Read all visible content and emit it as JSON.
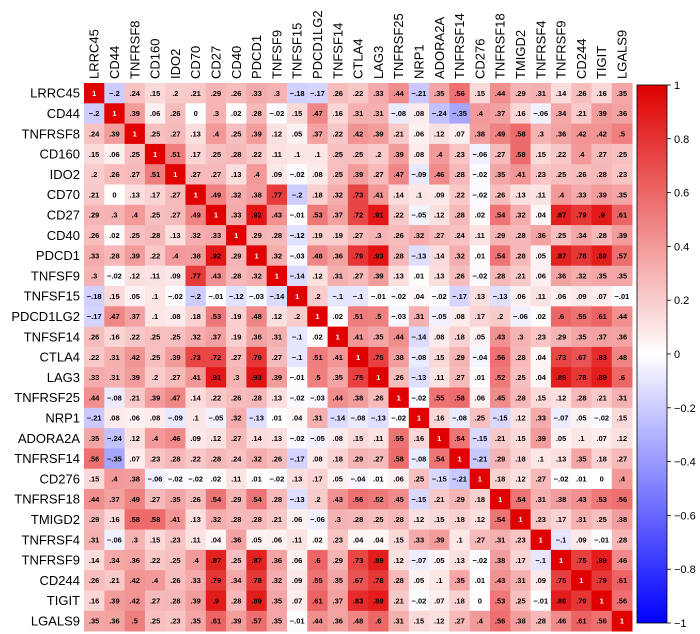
{
  "chart_data": {
    "type": "heatmap",
    "labels": [
      "LRRC45",
      "CD44",
      "TNFRSF8",
      "CD160",
      "IDO2",
      "CD70",
      "CD27",
      "CD40",
      "PDCD1",
      "TNFSF9",
      "TNFSF15",
      "PDCD1LG2",
      "TNFSF14",
      "CTLA4",
      "LAG3",
      "TNFRSF25",
      "NRP1",
      "ADORA2A",
      "TNFRSF14",
      "CD276",
      "TNFRSF18",
      "TMIGD2",
      "TNFRSF4",
      "TNFRSF9",
      "CD244",
      "TIGIT",
      "LGALS9"
    ],
    "matrix": [
      [
        1,
        -0.2,
        0.24,
        0.15,
        0.2,
        0.21,
        0.29,
        0.26,
        0.33,
        0.3,
        -0.18,
        -0.17,
        0.26,
        0.22,
        0.33,
        0.44,
        -0.21,
        0.35,
        0.56,
        0.15,
        0.44,
        0.29,
        0.31,
        0.14,
        0.26,
        0.16,
        0.35
      ],
      [
        -0.2,
        1,
        0.39,
        0.06,
        0.26,
        0,
        0.3,
        0.02,
        0.28,
        -0.02,
        0.15,
        0.47,
        0.16,
        0.31,
        0.31,
        -0.08,
        0.08,
        -0.24,
        -0.35,
        0.4,
        0.37,
        0.16,
        -0.06,
        0.34,
        0.21,
        0.39,
        0.36
      ],
      [
        0.24,
        0.39,
        1,
        0.25,
        0.27,
        0.13,
        0.4,
        0.25,
        0.39,
        0.12,
        0.05,
        0.37,
        0.22,
        0.42,
        0.39,
        0.21,
        0.06,
        0.12,
        0.07,
        0.38,
        0.49,
        0.58,
        0.3,
        0.36,
        0.42,
        0.42,
        0.5
      ],
      [
        0.15,
        0.06,
        0.25,
        1,
        0.51,
        0.17,
        0.25,
        0.28,
        0.22,
        0.11,
        0.1,
        0.1,
        0.25,
        0.25,
        0.2,
        0.39,
        0.08,
        0.4,
        0.23,
        -0.06,
        0.27,
        0.58,
        0.15,
        0.22,
        0.4,
        0.27,
        0.25
      ],
      [
        0.2,
        0.26,
        0.27,
        0.51,
        1,
        0.27,
        0.27,
        0.13,
        0.4,
        0.09,
        -0.02,
        0.08,
        0.25,
        0.39,
        0.27,
        0.47,
        -0.09,
        0.46,
        0.28,
        -0.02,
        0.35,
        0.41,
        0.23,
        0.25,
        0.26,
        0.28,
        0.23
      ],
      [
        0.21,
        0,
        0.13,
        0.17,
        0.27,
        1,
        0.49,
        0.32,
        0.38,
        0.77,
        -0.2,
        0.18,
        0.32,
        0.73,
        0.41,
        0.14,
        0.1,
        0.09,
        0.22,
        -0.02,
        0.26,
        0.13,
        0.11,
        0.4,
        0.33,
        0.39,
        0.35
      ],
      [
        0.29,
        0.3,
        0.4,
        0.25,
        0.27,
        0.49,
        1,
        0.33,
        0.92,
        0.43,
        -0.01,
        0.53,
        0.37,
        0.72,
        0.91,
        0.22,
        -0.05,
        0.12,
        0.28,
        0.02,
        0.54,
        0.32,
        0.04,
        0.87,
        0.79,
        0.9,
        0.61
      ],
      [
        0.26,
        0.02,
        0.25,
        0.28,
        0.13,
        0.32,
        0.33,
        1,
        0.29,
        0.28,
        -0.12,
        0.19,
        0.19,
        0.27,
        0.3,
        0.26,
        0.32,
        0.27,
        0.24,
        0.11,
        0.29,
        0.28,
        0.36,
        0.25,
        0.34,
        0.28,
        0.39
      ],
      [
        0.33,
        0.28,
        0.39,
        0.22,
        0.4,
        0.38,
        0.92,
        0.29,
        1,
        0.32,
        -0.03,
        0.48,
        0.36,
        0.79,
        0.93,
        0.28,
        -0.13,
        0.14,
        0.32,
        0.01,
        0.54,
        0.28,
        0.05,
        0.87,
        0.78,
        0.89,
        0.57
      ],
      [
        0.3,
        -0.02,
        0.12,
        0.11,
        0.09,
        0.77,
        0.43,
        0.28,
        0.32,
        1,
        -0.14,
        0.12,
        0.31,
        0.27,
        0.39,
        0.13,
        0.01,
        0.13,
        0.26,
        -0.02,
        0.28,
        0.21,
        0.06,
        0.36,
        0.32,
        0.35,
        0.35
      ],
      [
        -0.18,
        0.15,
        0.05,
        0.1,
        -0.02,
        -0.2,
        -0.01,
        -0.12,
        -0.03,
        -0.14,
        1,
        0.2,
        -0.1,
        -0.1,
        -0.01,
        -0.02,
        0.04,
        -0.02,
        -0.17,
        0.13,
        -0.13,
        0.06,
        0.11,
        0.06,
        0.09,
        0.07,
        -0.01
      ],
      [
        -0.17,
        0.47,
        0.37,
        0.1,
        0.08,
        0.18,
        0.53,
        0.19,
        0.48,
        0.12,
        0.2,
        1,
        0.02,
        0.51,
        0.5,
        -0.03,
        0.31,
        -0.05,
        0.08,
        0.17,
        0.2,
        -0.06,
        0.02,
        0.6,
        0.55,
        0.61,
        0.44
      ],
      [
        0.26,
        0.16,
        0.22,
        0.25,
        0.25,
        0.32,
        0.37,
        0.19,
        0.36,
        0.31,
        -0.1,
        0.02,
        1,
        0.41,
        0.35,
        0.44,
        -0.14,
        0.08,
        0.18,
        0.05,
        0.43,
        0.3,
        0.23,
        0.29,
        0.35,
        0.37,
        0.36
      ],
      [
        0.22,
        0.31,
        0.42,
        0.25,
        0.39,
        0.73,
        0.72,
        0.27,
        0.79,
        0.27,
        -0.1,
        0.51,
        0.41,
        1,
        0.75,
        0.38,
        -0.08,
        0.15,
        0.29,
        -0.04,
        0.56,
        0.28,
        0.04,
        0.73,
        0.67,
        0.83,
        0.48
      ],
      [
        0.33,
        0.31,
        0.39,
        0.2,
        0.27,
        0.41,
        0.91,
        0.3,
        0.93,
        0.39,
        -0.01,
        0.5,
        0.35,
        0.75,
        1,
        0.26,
        -0.13,
        0.11,
        0.27,
        0.01,
        0.52,
        0.25,
        0.04,
        0.89,
        0.78,
        0.89,
        0.6
      ],
      [
        0.44,
        -0.08,
        0.21,
        0.39,
        0.47,
        0.14,
        0.22,
        0.26,
        0.28,
        0.13,
        -0.02,
        -0.03,
        0.44,
        0.38,
        0.26,
        1,
        -0.02,
        0.55,
        0.58,
        0.06,
        0.45,
        0.28,
        0.15,
        0.12,
        0.28,
        0.21,
        0.31
      ],
      [
        -0.21,
        0.08,
        0.06,
        0.08,
        -0.09,
        0.1,
        -0.05,
        0.32,
        -0.13,
        0.01,
        0.04,
        0.31,
        -0.14,
        -0.08,
        -0.13,
        -0.02,
        1,
        0.16,
        -0.08,
        0.25,
        -0.15,
        0.12,
        0.33,
        -0.07,
        0.05,
        -0.02,
        0.15
      ],
      [
        0.35,
        -0.24,
        0.12,
        0.4,
        0.46,
        0.09,
        0.12,
        0.27,
        0.14,
        0.13,
        -0.02,
        -0.05,
        0.08,
        0.15,
        0.11,
        0.55,
        0.16,
        1,
        0.54,
        -0.15,
        0.21,
        0.15,
        0.39,
        0.05,
        0.1,
        0.07,
        0.12
      ],
      [
        0.56,
        -0.35,
        0.07,
        0.23,
        0.28,
        0.22,
        0.28,
        0.24,
        0.32,
        0.26,
        -0.17,
        0.08,
        0.18,
        0.29,
        0.27,
        0.58,
        -0.08,
        0.54,
        1,
        -0.21,
        0.29,
        0.18,
        0.1,
        0.13,
        0.35,
        0.18,
        0.27
      ],
      [
        0.15,
        0.4,
        0.38,
        -0.06,
        -0.02,
        -0.02,
        0.02,
        0.11,
        0.01,
        -0.02,
        0.13,
        0.17,
        0.05,
        -0.04,
        0.01,
        0.06,
        0.25,
        -0.15,
        -0.21,
        1,
        0.18,
        0.12,
        0.27,
        -0.02,
        0.01,
        0,
        0.4
      ],
      [
        0.44,
        0.37,
        0.49,
        0.27,
        0.35,
        0.26,
        0.54,
        0.29,
        0.54,
        0.28,
        -0.13,
        0.2,
        0.43,
        0.56,
        0.52,
        0.45,
        -0.15,
        0.21,
        0.29,
        0.18,
        1,
        0.54,
        0.31,
        0.38,
        0.43,
        0.53,
        0.56
      ],
      [
        0.29,
        0.16,
        0.58,
        0.58,
        0.41,
        0.13,
        0.32,
        0.28,
        0.28,
        0.21,
        0.06,
        -0.06,
        0.3,
        0.28,
        0.25,
        0.28,
        0.12,
        0.15,
        0.18,
        0.12,
        0.54,
        1,
        0.23,
        0.17,
        0.31,
        0.25,
        0.38
      ],
      [
        0.31,
        -0.06,
        0.3,
        0.15,
        0.23,
        0.11,
        0.04,
        0.36,
        0.05,
        0.06,
        0.11,
        0.02,
        0.23,
        0.04,
        0.04,
        0.15,
        0.33,
        0.39,
        0.1,
        0.27,
        0.31,
        0.23,
        1,
        -0.1,
        0.09,
        -0.01,
        0.28
      ],
      [
        0.14,
        0.34,
        0.36,
        0.22,
        0.25,
        0.4,
        0.87,
        0.25,
        0.87,
        0.36,
        0.06,
        0.6,
        0.29,
        0.73,
        0.89,
        0.12,
        -0.07,
        0.05,
        0.13,
        -0.02,
        0.38,
        0.17,
        -0.1,
        1,
        0.75,
        0.89,
        0.46
      ],
      [
        0.26,
        0.21,
        0.42,
        0.4,
        0.26,
        0.33,
        0.79,
        0.34,
        0.78,
        0.32,
        0.09,
        0.55,
        0.35,
        0.67,
        0.78,
        0.28,
        0.05,
        0.1,
        0.35,
        0.01,
        0.43,
        0.31,
        0.09,
        0.75,
        1,
        0.79,
        0.61
      ],
      [
        0.16,
        0.39,
        0.42,
        0.27,
        0.28,
        0.39,
        0.9,
        0.28,
        0.89,
        0.35,
        0.07,
        0.61,
        0.37,
        0.83,
        0.89,
        0.21,
        -0.02,
        0.07,
        0.18,
        0,
        0.53,
        0.25,
        -0.01,
        0.89,
        0.79,
        1,
        0.56
      ],
      [
        0.35,
        0.36,
        0.5,
        0.25,
        0.23,
        0.35,
        0.61,
        0.39,
        0.57,
        0.35,
        -0.01,
        0.44,
        0.36,
        0.48,
        0.6,
        0.31,
        0.15,
        0.12,
        0.27,
        0.4,
        0.56,
        0.38,
        0.28,
        0.46,
        0.61,
        0.56,
        1
      ]
    ],
    "colorbar": {
      "min": -1,
      "max": 1,
      "ticks": [
        "1",
        "0.8",
        "0.6",
        "0.4",
        "0.2",
        "0",
        "−0.2",
        "−0.4",
        "−0.6",
        "−0.8",
        "−1"
      ],
      "colors": {
        "negative": "#0000ff",
        "neutral": "#ffffff",
        "positive": "#e00000"
      }
    }
  }
}
